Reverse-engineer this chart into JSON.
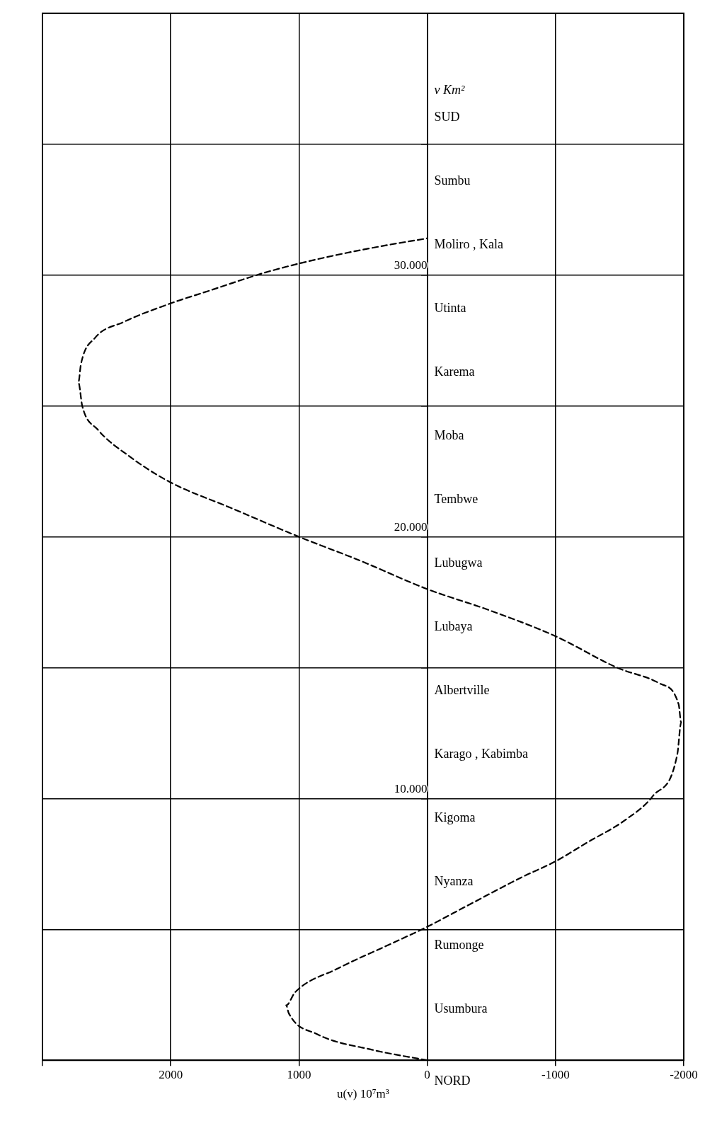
{
  "chart_data": {
    "type": "line",
    "xlabel": "u(v) 10⁷m³",
    "ylabel": "v Km²",
    "xlim": [
      3000,
      -2000
    ],
    "xticks": [
      {
        "value": 3000,
        "label": null
      },
      2000,
      1000,
      0,
      -1000,
      -2000
    ],
    "ylim": [
      0,
      40000
    ],
    "yticks": [
      {
        "value": 0,
        "label": null
      },
      {
        "value": 5000,
        "label": null
      },
      {
        "value": 10000,
        "label": "10.000"
      },
      {
        "value": 15000,
        "label": null
      },
      {
        "value": 20000,
        "label": "20.000"
      },
      {
        "value": 25000,
        "label": null
      },
      {
        "value": 30000,
        "label": "30.000"
      },
      {
        "value": 35000,
        "label": null
      },
      {
        "value": 40000,
        "label": null
      }
    ],
    "grid": true,
    "marker": "none",
    "line_style": "dashed",
    "series": [
      {
        "color": "#000000",
        "x": [
          0,
          430,
          860,
          1080,
          1100,
          1030,
          700,
          260,
          0,
          -310,
          -740,
          -1000,
          -1240,
          -1550,
          -1760,
          -1950,
          -1980,
          -1960,
          -1810,
          -1480,
          -1000,
          -480,
          0,
          530,
          1000,
          1530,
          2010,
          2330,
          2570,
          2690,
          2720,
          2700,
          2590,
          2370,
          2010,
          1700,
          1260,
          860,
          360,
          0
        ],
        "values": [
          0,
          400,
          1000,
          1800,
          2100,
          2600,
          3500,
          4500,
          5100,
          5900,
          7000,
          7600,
          8300,
          9200,
          10100,
          11700,
          12900,
          13600,
          14400,
          15000,
          16200,
          17200,
          18000,
          19100,
          20000,
          21100,
          22100,
          23100,
          24100,
          25000,
          25900,
          26600,
          27600,
          28200,
          28900,
          29400,
          30100,
          30600,
          31100,
          31400
        ]
      }
    ],
    "annotations": [
      "NORD",
      "Usumbura",
      "Rumonge",
      "Nyanza",
      "Kigoma",
      "Karago , Kabimba",
      "Albertville",
      "Lubaya",
      "Lubugwa",
      "Tembwe",
      "Moba",
      "Karema",
      "Utinta",
      "Moliro , Kala",
      "Sumbu",
      "SUD"
    ]
  }
}
